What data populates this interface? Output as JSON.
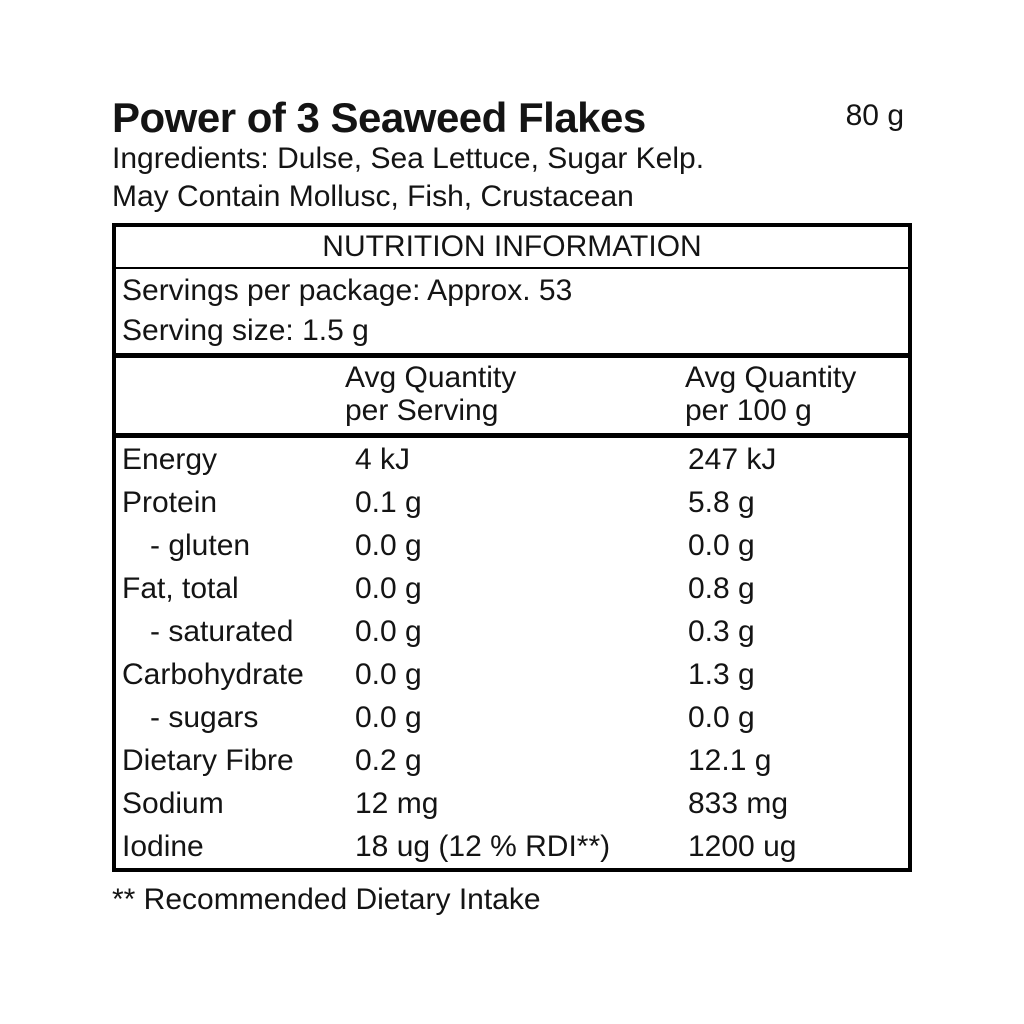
{
  "colors": {
    "background": "#ffffff",
    "text": "#141414",
    "border": "#000000"
  },
  "product": {
    "title": "Power of 3 Seaweed Flakes",
    "net_weight": "80 g",
    "ingredients": "Ingredients: Dulse, Sea Lettuce, Sugar Kelp.",
    "may_contain": "May Contain Mollusc, Fish, Crustacean"
  },
  "nutrition_table": {
    "heading": "NUTRITION INFORMATION",
    "servings_per_package": "Servings per package: Approx. 53",
    "serving_size": "Serving size: 1.5 g",
    "col_headers": {
      "per_serving_line1": "Avg Quantity",
      "per_serving_line2": "per Serving",
      "per_100g_line1": "Avg Quantity",
      "per_100g_line2": "per 100 g"
    },
    "rows": [
      {
        "label": "Energy",
        "per_serving": "4 kJ",
        "per_100g": "247 kJ"
      },
      {
        "label": "Protein",
        "per_serving": "0.1 g",
        "per_100g": "5.8 g"
      },
      {
        "label": "- gluten",
        "per_serving": "0.0 g",
        "per_100g": "0.0 g"
      },
      {
        "label": "Fat, total",
        "per_serving": "0.0 g",
        "per_100g": "0.8 g"
      },
      {
        "label": "- saturated",
        "per_serving": "0.0 g",
        "per_100g": "0.3 g"
      },
      {
        "label": "Carbohydrate",
        "per_serving": "0.0 g",
        "per_100g": "1.3 g"
      },
      {
        "label": "- sugars",
        "per_serving": "0.0 g",
        "per_100g": "0.0 g"
      },
      {
        "label": "Dietary Fibre",
        "per_serving": "0.2 g",
        "per_100g": "12.1 g"
      },
      {
        "label": "Sodium",
        "per_serving": "12 mg",
        "per_100g": "833 mg"
      },
      {
        "label": "Iodine",
        "per_serving": "18 ug (12 % RDI**)",
        "per_100g": "1200 ug"
      }
    ],
    "footnote": "** Recommended Dietary Intake"
  }
}
